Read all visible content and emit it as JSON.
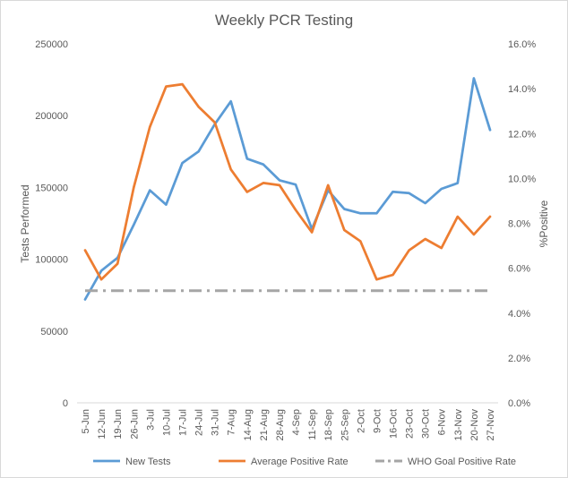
{
  "chart_data": {
    "type": "line",
    "title": "Weekly PCR Testing",
    "ylabel": "Tests Performed",
    "y2label": "%Positive",
    "ylim": [
      0,
      250000
    ],
    "y2lim": [
      0,
      16
    ],
    "yticks": [
      "0",
      "50000",
      "100000",
      "150000",
      "200000",
      "250000"
    ],
    "y2ticks": [
      "0.0%",
      "2.0%",
      "4.0%",
      "6.0%",
      "8.0%",
      "10.0%",
      "12.0%",
      "14.0%",
      "16.0%"
    ],
    "grid": false,
    "legend_position": "bottom",
    "categories": [
      "5-Jun",
      "12-Jun",
      "19-Jun",
      "26-Jun",
      "3-Jul",
      "10-Jul",
      "17-Jul",
      "24-Jul",
      "31-Jul",
      "7-Aug",
      "14-Aug",
      "21-Aug",
      "28-Aug",
      "4-Sep",
      "11-Sep",
      "18-Sep",
      "25-Sep",
      "2-Oct",
      "9-Oct",
      "16-Oct",
      "23-Oct",
      "30-Oct",
      "6-Nov",
      "13-Nov",
      "20-Nov",
      "27-Nov"
    ],
    "series": [
      {
        "name": "New Tests",
        "axis": "left",
        "color": "#5b9bd5",
        "dash": "solid",
        "values": [
          72000,
          92000,
          101000,
          124000,
          148000,
          138000,
          167000,
          175000,
          194000,
          210000,
          170000,
          166000,
          155000,
          152000,
          121000,
          148000,
          135000,
          132000,
          132000,
          147000,
          146000,
          139000,
          149000,
          153000,
          226000,
          190000
        ]
      },
      {
        "name": "Average Positive Rate",
        "axis": "right",
        "color": "#ed7d31",
        "dash": "solid",
        "values": [
          6.8,
          5.5,
          6.2,
          9.6,
          12.3,
          14.1,
          14.2,
          13.2,
          12.5,
          10.4,
          9.4,
          9.8,
          9.7,
          8.6,
          7.6,
          9.7,
          7.7,
          7.2,
          5.5,
          5.7,
          6.8,
          7.3,
          6.9,
          8.3,
          7.5,
          8.3
        ]
      },
      {
        "name": "WHO Goal Positive Rate",
        "axis": "right",
        "color": "#a5a5a5",
        "dash": "dashdot",
        "values": [
          5,
          5,
          5,
          5,
          5,
          5,
          5,
          5,
          5,
          5,
          5,
          5,
          5,
          5,
          5,
          5,
          5,
          5,
          5,
          5,
          5,
          5,
          5,
          5,
          5,
          5
        ]
      }
    ]
  }
}
